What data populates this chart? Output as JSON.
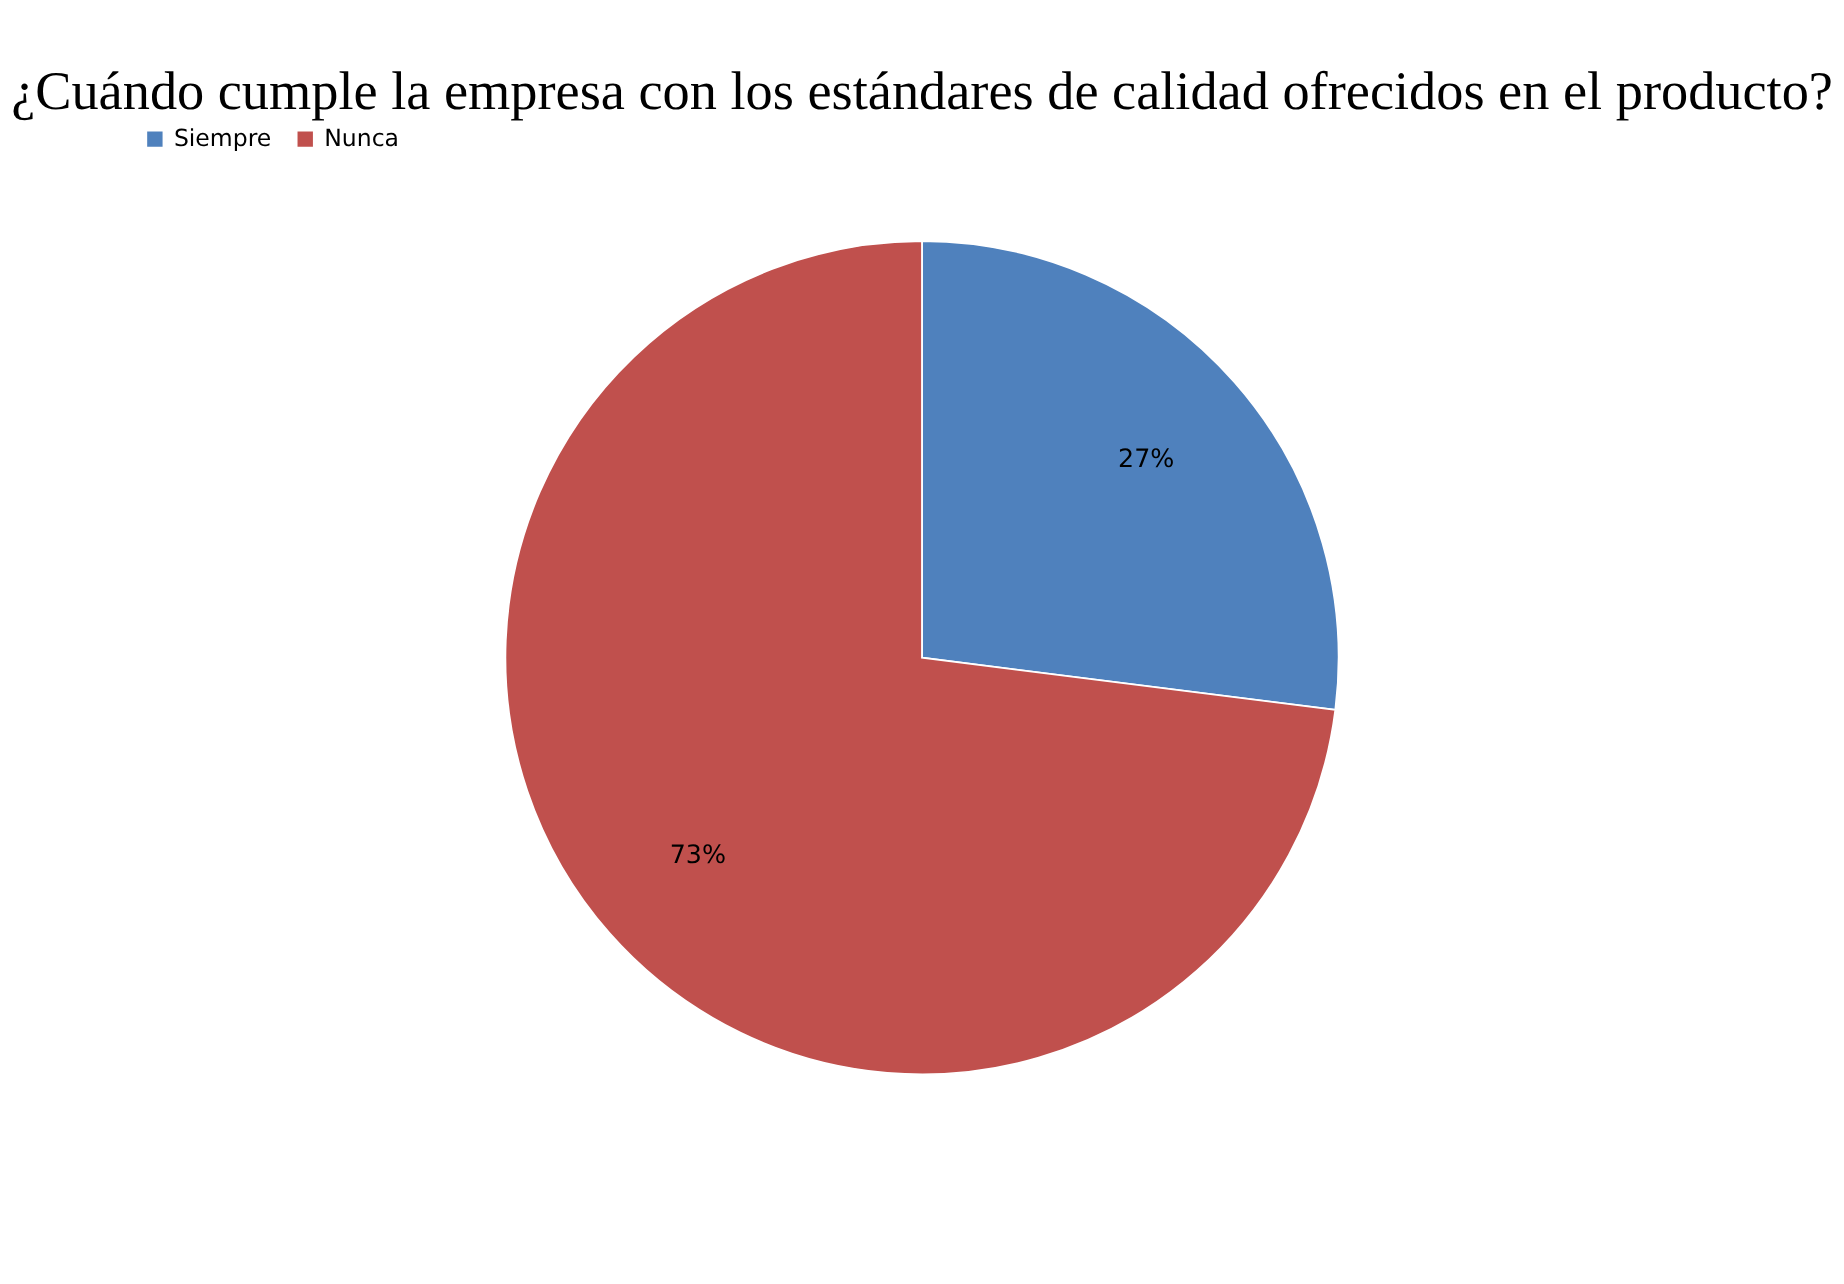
{
  "chart_data": {
    "type": "pie",
    "title": "¿Cuándo cumple la empresa con los estándares de calidad ofrecidos en el producto?",
    "categories": [
      "Siempre",
      "Nunca"
    ],
    "values": [
      27,
      73
    ],
    "colors": [
      "#4f81bd",
      "#c0504d"
    ],
    "value_labels": [
      "27%",
      "73%"
    ],
    "legend": "top"
  }
}
